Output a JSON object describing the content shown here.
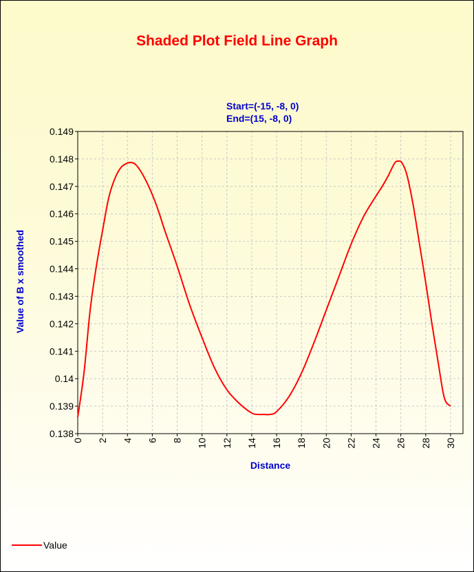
{
  "chart_data": {
    "type": "line",
    "title": "Shaded Plot Field Line Graph",
    "subtitle": [
      "Start=(-15, -8, 0)",
      "End=(15, -8, 0)"
    ],
    "xlabel": "Distance",
    "ylabel": "Value of B x smoothed",
    "xlim": [
      0,
      31
    ],
    "ylim": [
      0.138,
      0.149
    ],
    "xticks": [
      0,
      2,
      4,
      6,
      8,
      10,
      12,
      14,
      16,
      18,
      20,
      22,
      24,
      26,
      28,
      30
    ],
    "yticks": [
      0.138,
      0.139,
      0.14,
      0.141,
      0.142,
      0.143,
      0.144,
      0.145,
      0.146,
      0.147,
      0.148,
      0.149
    ],
    "ytick_labels": [
      "0.138",
      "0.139",
      "0.14",
      "0.141",
      "0.142",
      "0.143",
      "0.144",
      "0.145",
      "0.146",
      "0.147",
      "0.148",
      "0.149"
    ],
    "grid": true,
    "legend_position": "bottom-left",
    "series": [
      {
        "name": "Value",
        "color": "#ff0000",
        "x": [
          0,
          0.5,
          1,
          1.5,
          2,
          2.5,
          3,
          3.5,
          4,
          4.3,
          4.6,
          5,
          5.5,
          6,
          6.5,
          7,
          8,
          9,
          10,
          11,
          12,
          13,
          14,
          14.5,
          15,
          15.5,
          16,
          17,
          18,
          19,
          20,
          21,
          22,
          23,
          24,
          24.5,
          25,
          25.5,
          25.8,
          26.1,
          26.5,
          27,
          27.5,
          28,
          28.5,
          29,
          29.5,
          30
        ],
        "y": [
          0.1386,
          0.1402,
          0.1425,
          0.1441,
          0.1454,
          0.1466,
          0.1473,
          0.1477,
          0.14785,
          0.14787,
          0.14782,
          0.1476,
          0.1472,
          0.1467,
          0.1461,
          0.1454,
          0.1441,
          0.1427,
          0.1415,
          0.1404,
          0.1396,
          0.1391,
          0.13875,
          0.1387,
          0.1387,
          0.1387,
          0.1388,
          0.13935,
          0.1402,
          0.1413,
          0.1425,
          0.1437,
          0.1449,
          0.1459,
          0.14665,
          0.147,
          0.1474,
          0.14785,
          0.14792,
          0.14785,
          0.1474,
          0.1463,
          0.1449,
          0.1435,
          0.142,
          0.1406,
          0.1393,
          0.139
        ]
      }
    ]
  },
  "legend": {
    "label": "Value"
  }
}
